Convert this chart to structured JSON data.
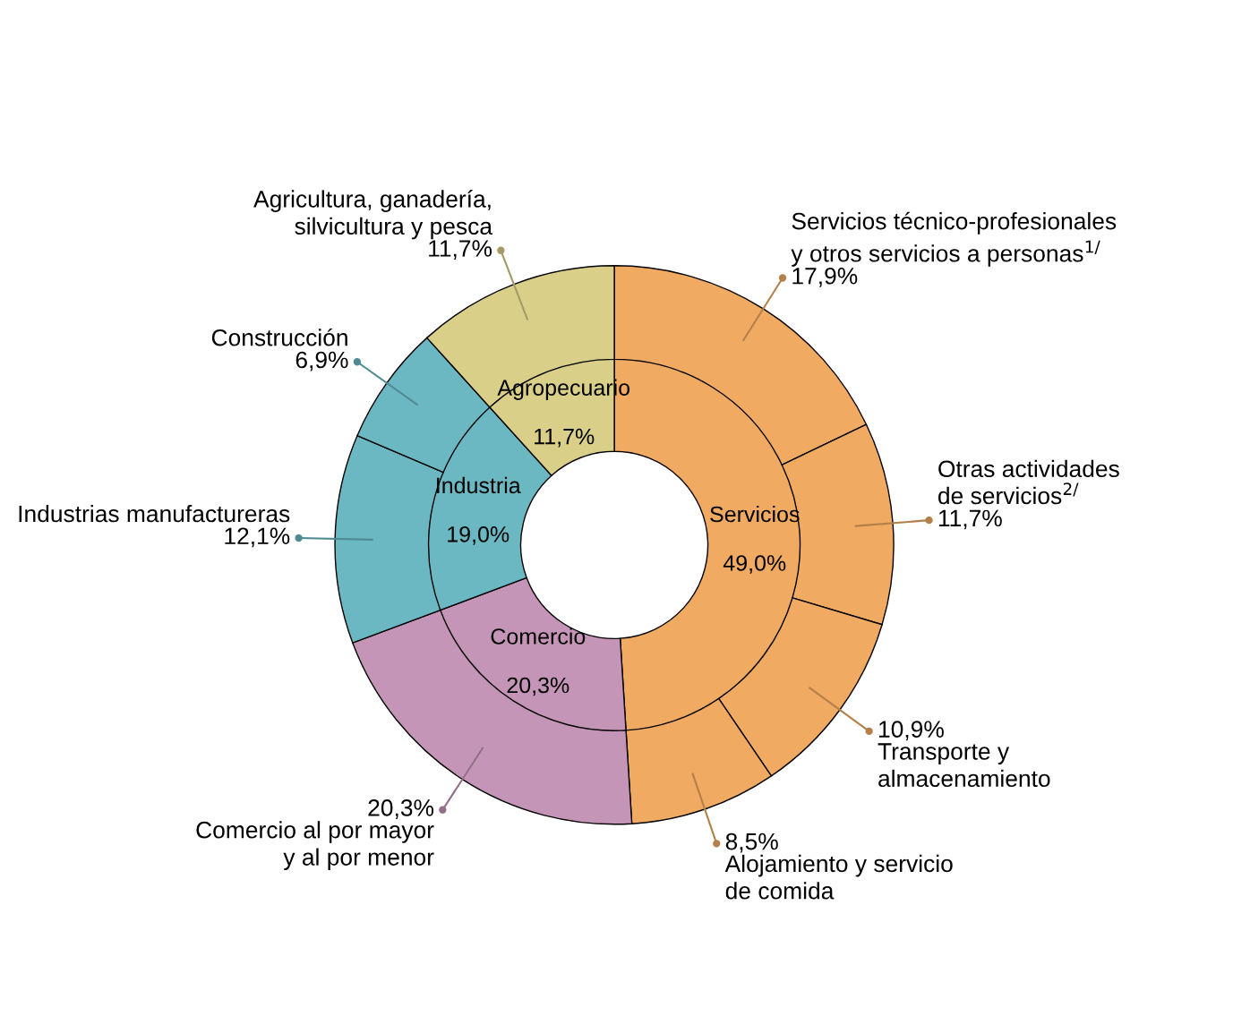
{
  "chart_data": {
    "type": "donut",
    "categories": [
      "Servicios técnico-profesionales\ny otros servicios a personas$^{1/}$",
      "Otras actividades\nde servicios$^{2/}$",
      "Transporte y\nalmacenamiento",
      "Alojamiento y servicio\nde comida",
      "Comercio al por mayor\ny al por menor",
      "Industrias manufactureras",
      "Construcción",
      "Agricultura, ganadería,\nsilvicultura y pesca"
    ],
    "values": [
      17.9,
      11.7,
      10.9,
      8.5,
      20.3,
      12.1,
      6.9,
      11.7
    ],
    "value_labels": [
      "17,9%",
      "11,7%",
      "10,9%",
      "8,5%",
      "20,3%",
      "12,1%",
      "6,9%",
      "11,7%"
    ],
    "colors": [
      "#f0aa62",
      "#f0aa62",
      "#f0aa62",
      "#f0aa62",
      "#c495b6",
      "#6bb8c3",
      "#6bb8c3",
      "#d9cf88"
    ],
    "series": [
      {
        "values": [
          49.0,
          null,
          null,
          null,
          20.3,
          19.0,
          null,
          11.7
        ],
        "value_labels": [
          "49,0%",
          null,
          null,
          null,
          "20,3%",
          "19,0%",
          null,
          "11,7%"
        ],
        "colors": [
          "#f0aa62",
          null,
          null,
          null,
          "#c495b6",
          "#6bb8c3",
          null,
          "#d9cf88"
        ]
      }
    ],
    "annotations": [
      "Servicios",
      "Comercio",
      "Industria",
      "Agropecuario"
    ]
  }
}
